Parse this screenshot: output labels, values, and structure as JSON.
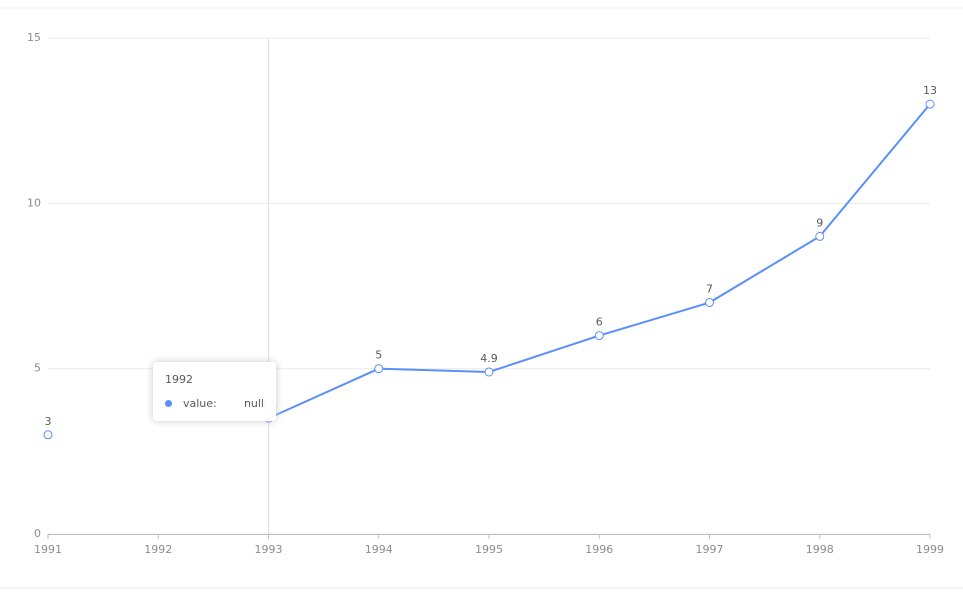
{
  "chart_data": {
    "type": "line",
    "categories": [
      "1991",
      "1992",
      "1993",
      "1994",
      "1995",
      "1996",
      "1997",
      "1998",
      "1999"
    ],
    "series": [
      {
        "color": "#5b8ff9",
        "values": [
          3,
          null,
          3.5,
          5,
          4.9,
          6,
          7,
          9,
          13
        ]
      }
    ],
    "ylim": [
      0,
      15
    ],
    "yticks": [
      0,
      5,
      10,
      15
    ],
    "grid": true,
    "tooltip": {
      "label": "value:",
      "value": "null"
    }
  }
}
